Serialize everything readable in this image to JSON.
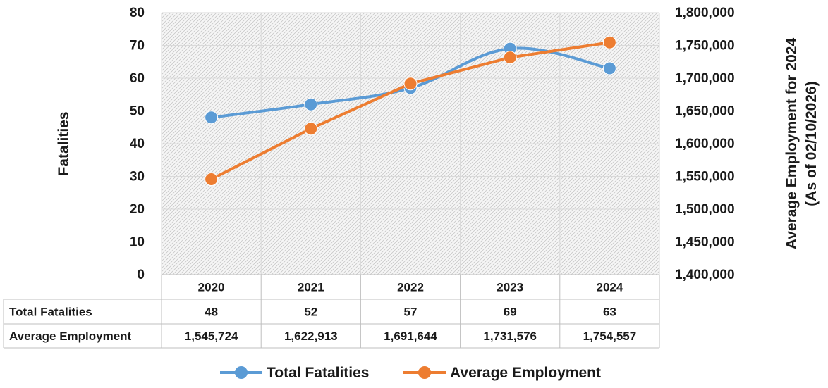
{
  "chart_data": {
    "type": "line",
    "categories": [
      "2020",
      "2021",
      "2022",
      "2023",
      "2024"
    ],
    "series": [
      {
        "name": "Total Fatalities",
        "axis": "left",
        "color": "#5b9bd5",
        "values": [
          48,
          52,
          57,
          69,
          63
        ],
        "smooth": true
      },
      {
        "name": "Average Employment",
        "axis": "right",
        "color": "#ed7d31",
        "values": [
          1545724,
          1622913,
          1691644,
          1731576,
          1754557
        ],
        "smooth": false
      }
    ],
    "ylabel_left": "Fatalities",
    "ylabel_right": [
      "Average Employment for 2024",
      "(As of 02/10/2026)"
    ],
    "ylim_left": [
      0,
      80
    ],
    "yticks_left": [
      "0",
      "10",
      "20",
      "30",
      "40",
      "50",
      "60",
      "70",
      "80"
    ],
    "ylim_right": [
      1400000,
      1800000
    ],
    "yticks_right": [
      "1,400,000",
      "1,450,000",
      "1,500,000",
      "1,550,000",
      "1,600,000",
      "1,650,000",
      "1,700,000",
      "1,750,000",
      "1,800,000"
    ],
    "grid": true,
    "legend_position": "bottom",
    "data_table": {
      "rows": [
        {
          "label": "Total Fatalities",
          "cells": [
            "48",
            "52",
            "57",
            "69",
            "63"
          ]
        },
        {
          "label": "Average Employment",
          "cells": [
            "1,545,724",
            "1,622,913",
            "1,691,644",
            "1,731,576",
            "1,754,557"
          ]
        }
      ]
    }
  }
}
